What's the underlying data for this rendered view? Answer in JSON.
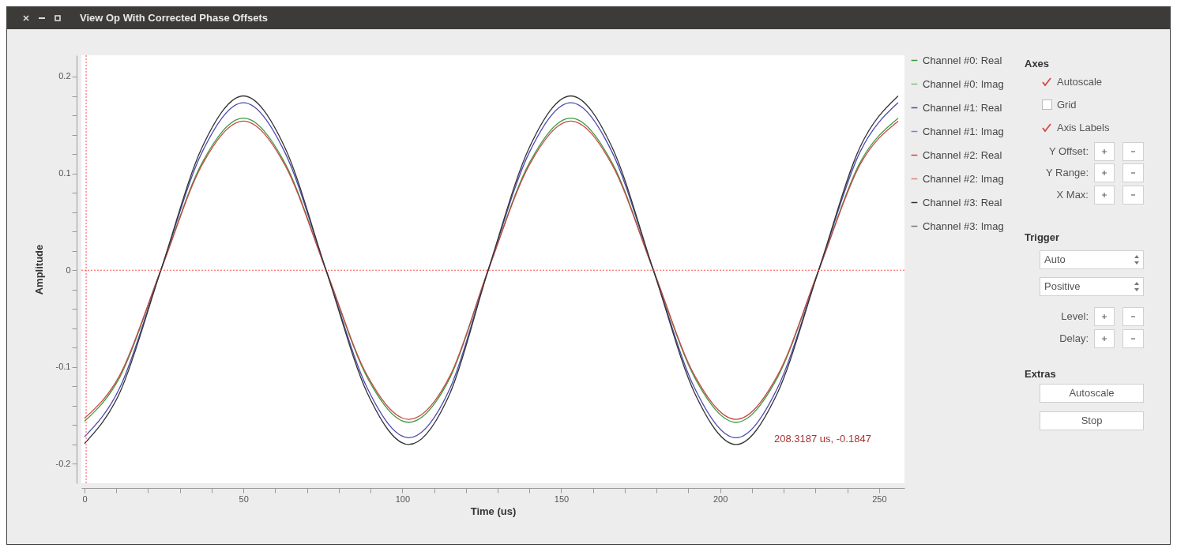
{
  "chart_data": {
    "type": "line",
    "title": "View Op With Corrected Phase Offsets",
    "xlabel": "Time (us)",
    "ylabel": "Amplitude",
    "x": [
      0,
      11,
      24,
      37,
      50,
      63,
      76,
      89,
      102,
      115,
      127,
      140,
      153,
      166,
      179,
      192,
      205,
      218,
      231,
      244,
      256
    ],
    "series": [
      {
        "name": "Channel #0: Real",
        "color": "#3c9b3c",
        "values": [
          -0.156,
          -0.111,
          0,
          0.111,
          0.157,
          0.111,
          0,
          -0.111,
          -0.157,
          -0.111,
          0,
          0.111,
          0.157,
          0.111,
          0,
          -0.111,
          -0.157,
          -0.111,
          0,
          0.111,
          0.157
        ]
      },
      {
        "name": "Channel #0: Imag",
        "color": "#7fbf7f",
        "values": [
          null,
          null,
          null,
          null,
          null,
          null,
          null,
          null,
          null,
          null,
          null,
          null,
          null,
          null,
          null,
          null,
          null,
          null,
          null,
          null,
          null
        ]
      },
      {
        "name": "Channel #1: Real",
        "color": "#4a4ab0",
        "values": [
          -0.172,
          -0.122,
          0,
          0.122,
          0.173,
          0.122,
          0,
          -0.122,
          -0.173,
          -0.122,
          0,
          0.122,
          0.173,
          0.122,
          0,
          -0.122,
          -0.173,
          -0.122,
          0,
          0.122,
          0.173
        ]
      },
      {
        "name": "Channel #1: Imag",
        "color": "#8080c8",
        "values": [
          null,
          null,
          null,
          null,
          null,
          null,
          null,
          null,
          null,
          null,
          null,
          null,
          null,
          null,
          null,
          null,
          null,
          null,
          null,
          null,
          null
        ]
      },
      {
        "name": "Channel #2: Real",
        "color": "#c84848",
        "values": [
          -0.153,
          -0.109,
          0,
          0.109,
          0.154,
          0.109,
          0,
          -0.109,
          -0.154,
          -0.109,
          0,
          0.109,
          0.154,
          0.109,
          0,
          -0.109,
          -0.154,
          -0.109,
          0,
          0.109,
          0.154
        ]
      },
      {
        "name": "Channel #2: Imag",
        "color": "#d98080",
        "values": [
          null,
          null,
          null,
          null,
          null,
          null,
          null,
          null,
          null,
          null,
          null,
          null,
          null,
          null,
          null,
          null,
          null,
          null,
          null,
          null,
          null
        ]
      },
      {
        "name": "Channel #3: Real",
        "color": "#333333",
        "values": [
          -0.179,
          -0.127,
          0,
          0.127,
          0.18,
          0.127,
          0,
          -0.127,
          -0.18,
          -0.127,
          0,
          0.127,
          0.18,
          0.127,
          0,
          -0.127,
          -0.18,
          -0.127,
          0,
          0.127,
          0.18
        ]
      },
      {
        "name": "Channel #3: Imag",
        "color": "#777777",
        "values": [
          null,
          null,
          null,
          null,
          null,
          null,
          null,
          null,
          null,
          null,
          null,
          null,
          null,
          null,
          null,
          null,
          null,
          null,
          null,
          null,
          null
        ]
      }
    ],
    "xlim": [
      -1,
      258
    ],
    "xticks": [
      0,
      {
        "value": 10,
        "label": null
      },
      {
        "value": 20,
        "label": null
      },
      {
        "value": 30,
        "label": null
      },
      {
        "value": 40,
        "label": null
      },
      50,
      {
        "value": 60,
        "label": null
      },
      {
        "value": 70,
        "label": null
      },
      {
        "value": 80,
        "label": null
      },
      {
        "value": 90,
        "label": null
      },
      100,
      {
        "value": 110,
        "label": null
      },
      {
        "value": 120,
        "label": null
      },
      {
        "value": 130,
        "label": null
      },
      {
        "value": 140,
        "label": null
      },
      150,
      {
        "value": 160,
        "label": null
      },
      {
        "value": 170,
        "label": null
      },
      {
        "value": 180,
        "label": null
      },
      {
        "value": 190,
        "label": null
      },
      200,
      {
        "value": 210,
        "label": null
      },
      {
        "value": 220,
        "label": null
      },
      {
        "value": 230,
        "label": null
      },
      {
        "value": 240,
        "label": null
      },
      250
    ],
    "ylim": [
      -0.22,
      0.222
    ],
    "yticks": [
      -0.2,
      {
        "value": -0.18,
        "label": null
      },
      {
        "value": -0.16,
        "label": null
      },
      {
        "value": -0.14,
        "label": null
      },
      {
        "value": -0.12,
        "label": null
      },
      -0.1,
      {
        "value": -0.08,
        "label": null
      },
      {
        "value": -0.06,
        "label": null
      },
      {
        "value": -0.04,
        "label": null
      },
      {
        "value": -0.02,
        "label": null
      },
      0,
      {
        "value": 0.02,
        "label": null
      },
      {
        "value": 0.04,
        "label": null
      },
      {
        "value": 0.06,
        "label": null
      },
      {
        "value": 0.08,
        "label": null
      },
      0.1,
      {
        "value": 0.12,
        "label": null
      },
      {
        "value": 0.14,
        "label": null
      },
      {
        "value": 0.16,
        "label": null
      },
      {
        "value": 0.18,
        "label": null
      },
      0.2
    ],
    "ref_lines": [
      {
        "axis": "y",
        "value": 0,
        "color": "#ff5050",
        "line_style": "dotted"
      },
      {
        "axis": "x",
        "value": 0.5,
        "color": "#ff5050",
        "line_style": "dotted"
      }
    ],
    "annotations": [
      "Axes",
      "Autoscale",
      "Grid",
      "Axis Labels",
      "Y Offset:",
      "Y Range:",
      "X Max:",
      "Trigger",
      "Auto",
      "Positive",
      "Level:",
      "Delay:",
      "Extras",
      "Autoscale",
      "Stop",
      "208.3187 us, -0.1847"
    ],
    "grid": false,
    "legend": "top right",
    "line_style": "solid"
  }
}
